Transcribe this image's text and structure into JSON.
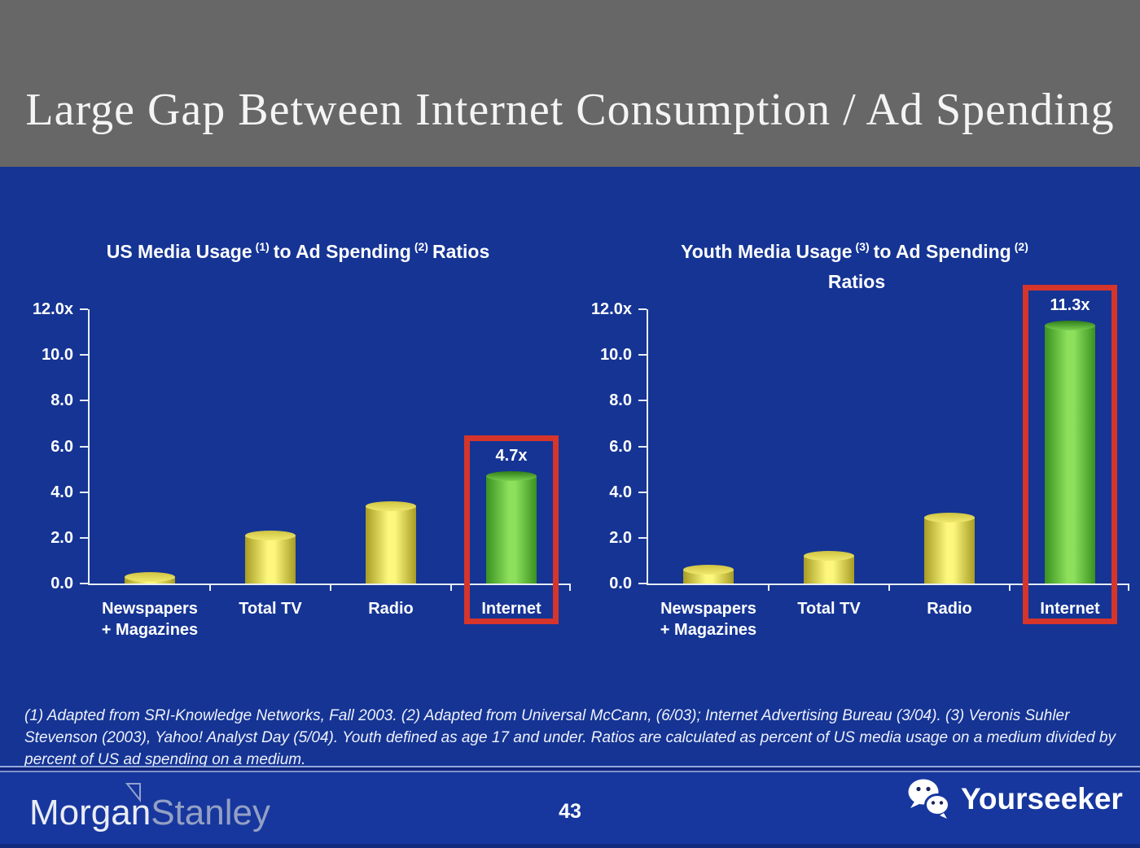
{
  "slide": {
    "title": "Large Gap Between Internet Consumption / Ad Spending",
    "footnote": "(1) Adapted from SRI-Knowledge Networks, Fall 2003.  (2) Adapted from Universal McCann, (6/03); Internet Advertising Bureau (3/04). (3) Veronis Suhler Stevenson (2003), Yahoo! Analyst Day (5/04).  Youth defined as age 17 and under.  Ratios are calculated as percent of US media usage on a medium divided by percent of US ad spending on a medium.",
    "page_number": "43"
  },
  "footer": {
    "brand_left_part1": "Morgan",
    "brand_left_part2": "Stanley",
    "brand_right": "Yourseeker"
  },
  "colors": {
    "header_gray": "#676767",
    "background_blue": "#153494",
    "footer_blue": "#17379e",
    "axis_white": "#e8edf8",
    "highlight_red": "#d5352b",
    "bar_yellow": {
      "edge": "#a89c24",
      "center": "#fdf87d",
      "cap_top": "#cfc342",
      "cap_bottom": "#efe96d"
    },
    "bar_green": {
      "edge": "#3a9220",
      "center": "#8ce05c",
      "cap_top": "#2f7d1a",
      "cap_bottom": "#79d14e"
    }
  },
  "chart_data": [
    {
      "type": "bar",
      "title": {
        "pre": "US Media Usage",
        "sup1": "(1)",
        "mid": "to Ad Spending",
        "sup2": "(2)",
        "post": "Ratios",
        "line2": ""
      },
      "categories": [
        [
          "Newspapers",
          "+ Magazines"
        ],
        [
          "Total TV"
        ],
        [
          "Radio"
        ],
        [
          "Internet"
        ]
      ],
      "values": [
        0.3,
        2.1,
        3.4,
        4.7
      ],
      "bar_colors": [
        "yellow",
        "yellow",
        "yellow",
        "green"
      ],
      "data_labels": [
        "",
        "",
        "",
        "4.7x"
      ],
      "highlight_index": 3,
      "ylim": [
        0,
        12
      ],
      "yticks": [
        {
          "label": "12.0x",
          "value": 12
        },
        {
          "label": "10.0",
          "value": 10
        },
        {
          "label": "8.0",
          "value": 8
        },
        {
          "label": "6.0",
          "value": 6
        },
        {
          "label": "4.0",
          "value": 4
        },
        {
          "label": "2.0",
          "value": 2
        },
        {
          "label": "0.0",
          "value": 0
        }
      ]
    },
    {
      "type": "bar",
      "title": {
        "pre": "Youth Media Usage",
        "sup1": "(3)",
        "mid": "to Ad Spending",
        "sup2": "(2)",
        "post": "",
        "line2": "Ratios"
      },
      "categories": [
        [
          "Newspapers",
          "+ Magazines"
        ],
        [
          "Total TV"
        ],
        [
          "Radio"
        ],
        [
          "Internet"
        ]
      ],
      "values": [
        0.6,
        1.2,
        2.9,
        11.3
      ],
      "bar_colors": [
        "yellow",
        "yellow",
        "yellow",
        "green"
      ],
      "data_labels": [
        "",
        "",
        "",
        "11.3x"
      ],
      "highlight_index": 3,
      "ylim": [
        0,
        12
      ],
      "yticks": [
        {
          "label": "12.0x",
          "value": 12
        },
        {
          "label": "10.0",
          "value": 10
        },
        {
          "label": "8.0",
          "value": 8
        },
        {
          "label": "6.0",
          "value": 6
        },
        {
          "label": "4.0",
          "value": 4
        },
        {
          "label": "2.0",
          "value": 2
        },
        {
          "label": "0.0",
          "value": 0
        }
      ]
    }
  ]
}
